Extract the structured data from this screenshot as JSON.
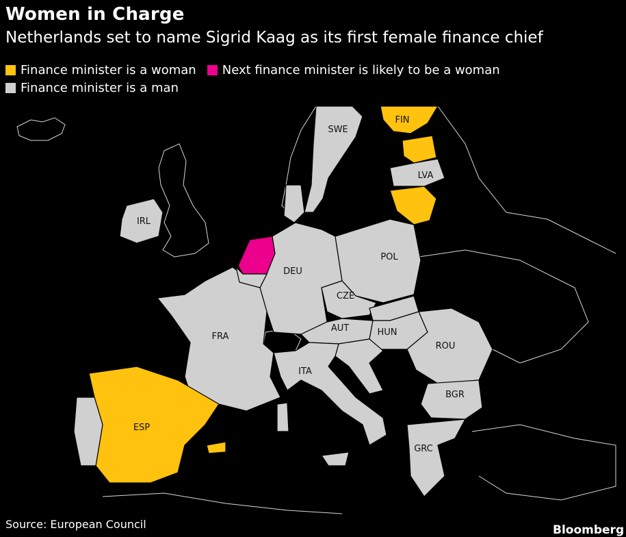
{
  "header": {
    "title": "Women in Charge",
    "subtitle": "Netherlands set to name Sigrid Kaag as its first female finance chief"
  },
  "legend": [
    {
      "label": "Finance minister is a woman",
      "color": "#FFC20E"
    },
    {
      "label": "Next finance minister is likely to be a woman",
      "color": "#EC008C"
    },
    {
      "label": "Finance minister is a man",
      "color": "#D0D0D0"
    }
  ],
  "colors": {
    "woman": "#FFC20E",
    "likely_woman": "#EC008C",
    "man": "#D0D0D0",
    "non_eu": "#000000",
    "background": "#000000"
  },
  "map": {
    "region": "Europe",
    "countries": [
      {
        "code": "SWE",
        "status": "man"
      },
      {
        "code": "FIN",
        "status": "woman"
      },
      {
        "code": "LVA",
        "status": "man"
      },
      {
        "code": "IRL",
        "status": "man"
      },
      {
        "code": "POL",
        "status": "man"
      },
      {
        "code": "DEU",
        "status": "man"
      },
      {
        "code": "CZE",
        "status": "man"
      },
      {
        "code": "FRA",
        "status": "man"
      },
      {
        "code": "AUT",
        "status": "man"
      },
      {
        "code": "HUN",
        "status": "man"
      },
      {
        "code": "ROU",
        "status": "man"
      },
      {
        "code": "ITA",
        "status": "man"
      },
      {
        "code": "BGR",
        "status": "man"
      },
      {
        "code": "ESP",
        "status": "woman"
      },
      {
        "code": "GRC",
        "status": "man"
      },
      {
        "code": "EST",
        "status": "woman"
      },
      {
        "code": "LTU",
        "status": "woman"
      },
      {
        "code": "NLD",
        "status": "likely_woman"
      }
    ]
  },
  "footer": {
    "source": "Source: European Council",
    "brand": "Bloomberg"
  }
}
